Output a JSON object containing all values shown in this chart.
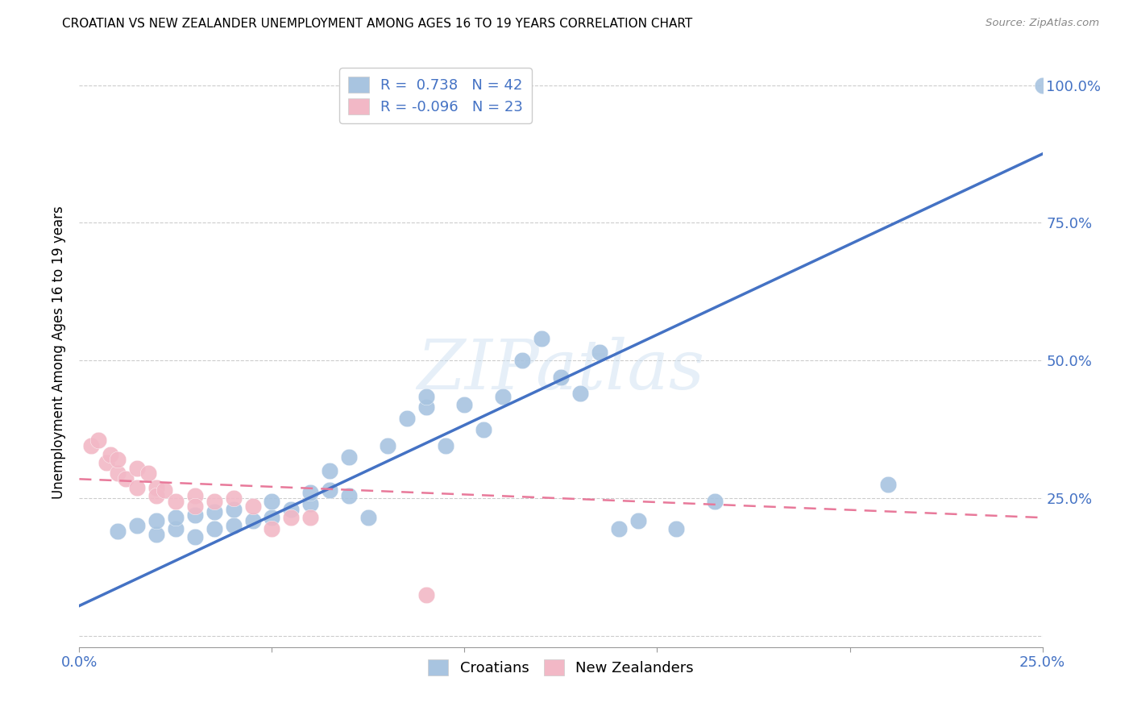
{
  "title": "CROATIAN VS NEW ZEALANDER UNEMPLOYMENT AMONG AGES 16 TO 19 YEARS CORRELATION CHART",
  "source": "Source: ZipAtlas.com",
  "ylabel": "Unemployment Among Ages 16 to 19 years",
  "x_ticks": [
    0.0,
    0.05,
    0.1,
    0.15,
    0.2,
    0.25
  ],
  "x_tick_labels": [
    "0.0%",
    "",
    "",
    "",
    "",
    "25.0%"
  ],
  "y_ticks": [
    0.0,
    0.25,
    0.5,
    0.75,
    1.0
  ],
  "y_tick_labels": [
    "",
    "25.0%",
    "50.0%",
    "75.0%",
    "100.0%"
  ],
  "xlim": [
    0.0,
    0.25
  ],
  "ylim": [
    -0.02,
    1.05
  ],
  "croatians_R": 0.738,
  "croatians_N": 42,
  "nz_R": -0.096,
  "nz_N": 23,
  "blue_color": "#a8c4e0",
  "pink_color": "#f2b8c6",
  "blue_line_color": "#4472c4",
  "pink_line_color": "#e8799a",
  "watermark": "ZIPatlas",
  "croatians_scatter_x": [
    0.01,
    0.015,
    0.02,
    0.02,
    0.025,
    0.025,
    0.03,
    0.03,
    0.035,
    0.035,
    0.04,
    0.04,
    0.045,
    0.05,
    0.05,
    0.055,
    0.06,
    0.06,
    0.065,
    0.065,
    0.07,
    0.07,
    0.075,
    0.08,
    0.085,
    0.09,
    0.09,
    0.095,
    0.1,
    0.105,
    0.11,
    0.115,
    0.12,
    0.125,
    0.13,
    0.135,
    0.14,
    0.145,
    0.155,
    0.165,
    0.21,
    0.25
  ],
  "croatians_scatter_y": [
    0.19,
    0.2,
    0.185,
    0.21,
    0.195,
    0.215,
    0.18,
    0.22,
    0.195,
    0.225,
    0.2,
    0.23,
    0.21,
    0.215,
    0.245,
    0.23,
    0.24,
    0.26,
    0.265,
    0.3,
    0.255,
    0.325,
    0.215,
    0.345,
    0.395,
    0.415,
    0.435,
    0.345,
    0.42,
    0.375,
    0.435,
    0.5,
    0.54,
    0.47,
    0.44,
    0.515,
    0.195,
    0.21,
    0.195,
    0.245,
    0.275,
    1.0
  ],
  "nz_scatter_x": [
    0.003,
    0.005,
    0.007,
    0.008,
    0.01,
    0.01,
    0.012,
    0.015,
    0.015,
    0.018,
    0.02,
    0.02,
    0.022,
    0.025,
    0.03,
    0.03,
    0.035,
    0.04,
    0.045,
    0.05,
    0.055,
    0.06,
    0.09
  ],
  "nz_scatter_y": [
    0.345,
    0.355,
    0.315,
    0.33,
    0.295,
    0.32,
    0.285,
    0.305,
    0.27,
    0.295,
    0.27,
    0.255,
    0.265,
    0.245,
    0.255,
    0.235,
    0.245,
    0.25,
    0.235,
    0.195,
    0.215,
    0.215,
    0.075
  ],
  "blue_trendline_x": [
    0.0,
    0.25
  ],
  "blue_trendline_y": [
    0.055,
    0.875
  ],
  "pink_trendline_x": [
    0.0,
    0.25
  ],
  "pink_trendline_y": [
    0.285,
    0.215
  ]
}
